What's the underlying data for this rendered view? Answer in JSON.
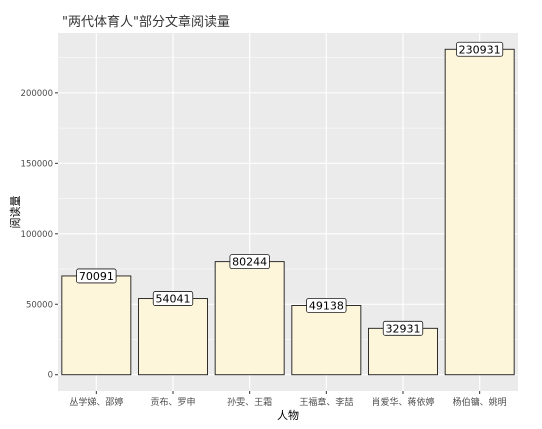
{
  "chart_data": {
    "type": "bar",
    "title": "\"两代体育人\"部分文章阅读量",
    "xlabel": "人物",
    "ylabel": "阅读量",
    "categories": [
      "丛学娣、邵婷",
      "贡布、罗申",
      "孙雯、王霜",
      "王福章、李喆",
      "肖爱华、蒋依婷",
      "杨伯镛、姚明"
    ],
    "values": [
      70091,
      54041,
      80244,
      49138,
      32931,
      230931
    ],
    "data_labels": [
      "70091",
      "54041",
      "80244",
      "49138",
      "32931",
      "230931"
    ],
    "y_ticks": [
      0,
      50000,
      100000,
      150000,
      200000
    ],
    "y_tick_labels": [
      "0",
      "50000",
      "100000",
      "150000",
      "200000"
    ],
    "ylim": [
      -11547,
      242478
    ],
    "grid": true,
    "colors": {
      "panel": "#ebebeb",
      "grid": "#ffffff",
      "bar_fill": "#fdf6da",
      "bar_stroke": "#1a1a1a",
      "text": "#333333",
      "axis_text": "#4d4d4d"
    }
  }
}
